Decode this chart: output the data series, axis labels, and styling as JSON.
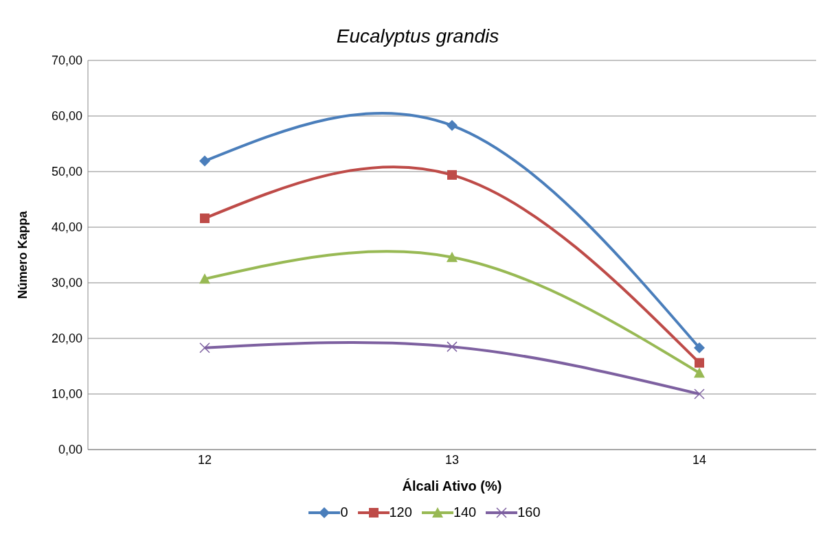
{
  "chart_data": {
    "type": "line",
    "title": "Eucalyptus grandis",
    "xlabel": "Álcali Ativo (%)",
    "ylabel": "Número Kappa",
    "categories": [
      "12",
      "13",
      "14"
    ],
    "series": [
      {
        "name": "0",
        "color": "#4a7ebb",
        "marker": "diamond",
        "values": [
          51.9,
          58.3,
          18.3
        ]
      },
      {
        "name": "120",
        "color": "#be4b48",
        "marker": "square",
        "values": [
          41.6,
          49.4,
          15.6
        ]
      },
      {
        "name": "140",
        "color": "#98b954",
        "marker": "triangle",
        "values": [
          30.7,
          34.6,
          13.8
        ]
      },
      {
        "name": "160",
        "color": "#7d60a0",
        "marker": "cross",
        "values": [
          18.3,
          18.5,
          10.0
        ]
      }
    ],
    "ylim": [
      0,
      70
    ],
    "yticks": [
      {
        "value": 0,
        "label": "0,00"
      },
      {
        "value": 10,
        "label": "10,00"
      },
      {
        "value": 20,
        "label": "20,00"
      },
      {
        "value": 30,
        "label": "30,00"
      },
      {
        "value": 40,
        "label": "40,00"
      },
      {
        "value": 50,
        "label": "50,00"
      },
      {
        "value": 60,
        "label": "60,00"
      },
      {
        "value": 70,
        "label": "70,00"
      }
    ],
    "grid": "y",
    "legend": "bottom",
    "line_style": "solid"
  }
}
